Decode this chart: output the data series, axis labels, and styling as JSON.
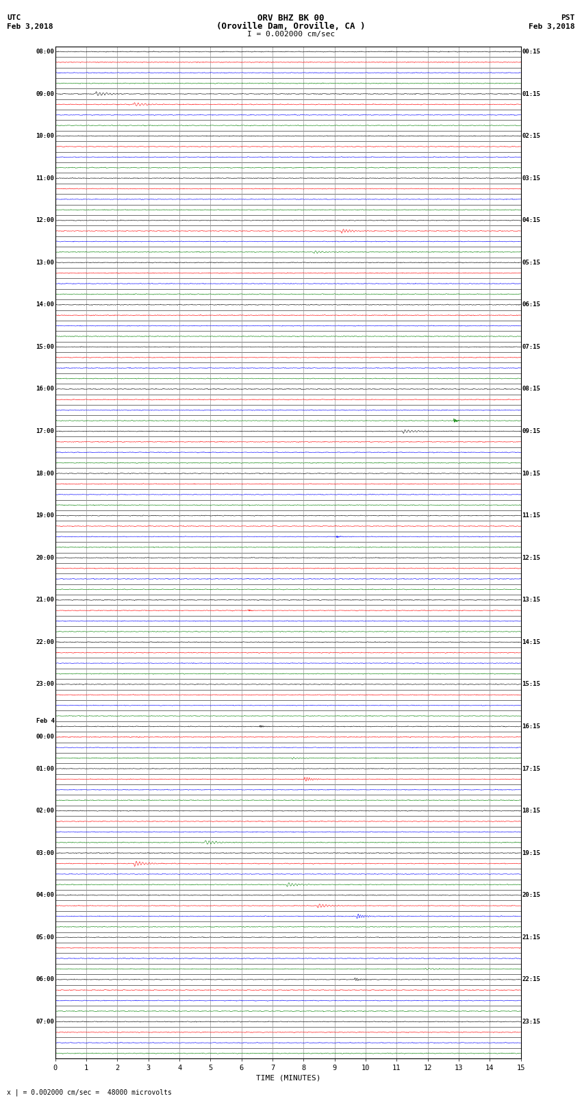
{
  "title_line1": "ORV BHZ BK 00",
  "title_line2": "(Oroville Dam, Oroville, CA )",
  "title_line3": "I = 0.002000 cm/sec",
  "left_label_top": "UTC",
  "left_label_date": "Feb 3,2018",
  "right_label_top": "PST",
  "right_label_date": "Feb 3,2018",
  "xlabel": "TIME (MINUTES)",
  "footer": "x | = 0.002000 cm/sec =  48000 microvolts",
  "num_traces": 60,
  "x_min": 0,
  "x_max": 15,
  "x_ticks": [
    0,
    1,
    2,
    3,
    4,
    5,
    6,
    7,
    8,
    9,
    10,
    11,
    12,
    13,
    14,
    15
  ],
  "trace_colors": [
    "black",
    "red",
    "blue",
    "green"
  ],
  "noise_amplitude": 0.035,
  "background_color": "white",
  "grid_color": "#999999",
  "fig_width": 8.5,
  "fig_height": 16.13,
  "dpi": 100,
  "left_time_labels": [
    [
      "08:00",
      0
    ],
    [
      "09:00",
      4
    ],
    [
      "10:00",
      8
    ],
    [
      "11:00",
      12
    ],
    [
      "12:00",
      16
    ],
    [
      "13:00",
      20
    ],
    [
      "14:00",
      24
    ],
    [
      "15:00",
      28
    ],
    [
      "16:00",
      32
    ],
    [
      "17:00",
      36
    ],
    [
      "18:00",
      40
    ],
    [
      "19:00",
      44
    ],
    [
      "20:00",
      48
    ],
    [
      "21:00",
      52
    ],
    [
      "22:00",
      56
    ],
    [
      "23:00",
      60
    ],
    [
      "Feb 4",
      64
    ],
    [
      "00:00",
      65
    ],
    [
      "01:00",
      68
    ],
    [
      "02:00",
      72
    ],
    [
      "03:00",
      76
    ],
    [
      "04:00",
      80
    ],
    [
      "05:00",
      84
    ],
    [
      "06:00",
      88
    ],
    [
      "07:00",
      92
    ]
  ],
  "right_time_labels": [
    [
      "00:15",
      0
    ],
    [
      "01:15",
      4
    ],
    [
      "02:15",
      8
    ],
    [
      "03:15",
      12
    ],
    [
      "04:15",
      16
    ],
    [
      "05:15",
      20
    ],
    [
      "06:15",
      24
    ],
    [
      "07:15",
      28
    ],
    [
      "08:15",
      32
    ],
    [
      "09:15",
      36
    ],
    [
      "10:15",
      40
    ],
    [
      "11:15",
      44
    ],
    [
      "12:15",
      48
    ],
    [
      "13:15",
      52
    ],
    [
      "14:15",
      56
    ],
    [
      "15:15",
      60
    ],
    [
      "16:15",
      64
    ],
    [
      "17:15",
      68
    ],
    [
      "18:15",
      72
    ],
    [
      "19:15",
      76
    ],
    [
      "20:15",
      80
    ],
    [
      "21:15",
      84
    ],
    [
      "22:15",
      88
    ],
    [
      "23:15",
      92
    ]
  ],
  "total_rows": 96
}
